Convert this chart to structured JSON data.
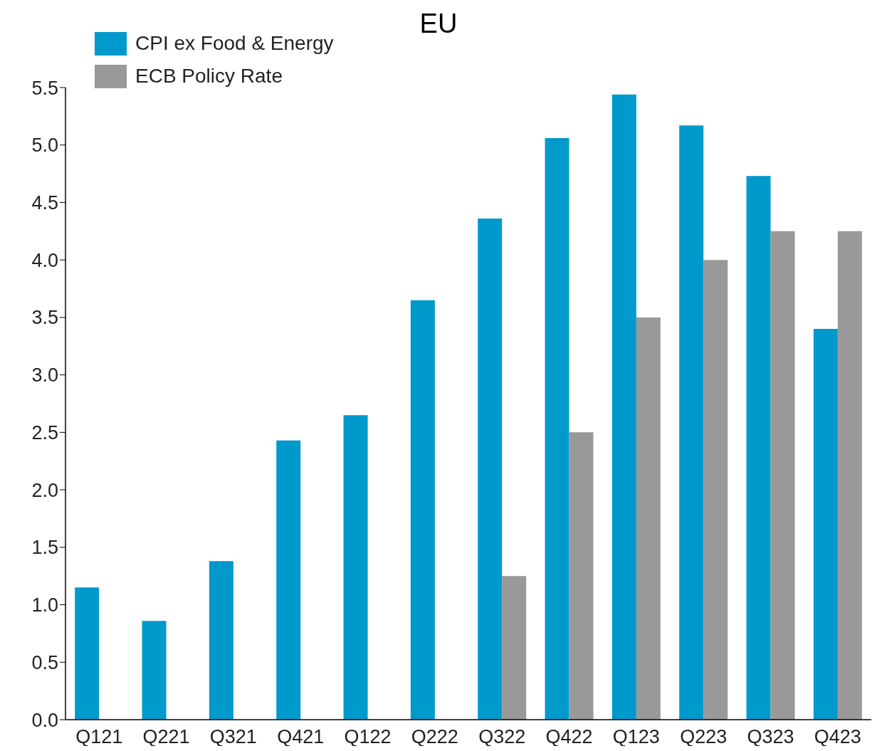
{
  "chart_data": {
    "type": "bar",
    "title": "EU",
    "categories": [
      "Q121",
      "Q221",
      "Q321",
      "Q421",
      "Q122",
      "Q222",
      "Q322",
      "Q422",
      "Q123",
      "Q223",
      "Q323",
      "Q423"
    ],
    "series": [
      {
        "name": "CPI ex Food & Energy",
        "color": "#0099cc",
        "values": [
          1.15,
          0.86,
          1.38,
          2.43,
          2.65,
          3.65,
          4.36,
          5.06,
          5.44,
          5.17,
          4.73,
          3.4
        ]
      },
      {
        "name": "ECB Policy Rate",
        "color": "#999999",
        "values": [
          null,
          null,
          null,
          null,
          null,
          null,
          1.25,
          2.5,
          3.5,
          4.0,
          4.25,
          4.25
        ]
      }
    ],
    "ylim": [
      0,
      5.5
    ],
    "yticks": [
      {
        "value": 0,
        "label": "0.0"
      },
      {
        "value": 0.5,
        "label": "0.5"
      },
      {
        "value": 1,
        "label": "1.0"
      },
      {
        "value": 1.5,
        "label": "1.5"
      },
      {
        "value": 2,
        "label": "2.0"
      },
      {
        "value": 2.5,
        "label": "2.5"
      },
      {
        "value": 3,
        "label": "3.0"
      },
      {
        "value": 3.5,
        "label": "3.5"
      },
      {
        "value": 4,
        "label": "4.0"
      },
      {
        "value": 4.5,
        "label": "4.5"
      },
      {
        "value": 5,
        "label": "5.0"
      },
      {
        "value": 5.5,
        "label": "5.5"
      }
    ],
    "legend": "top left",
    "grid": false
  }
}
